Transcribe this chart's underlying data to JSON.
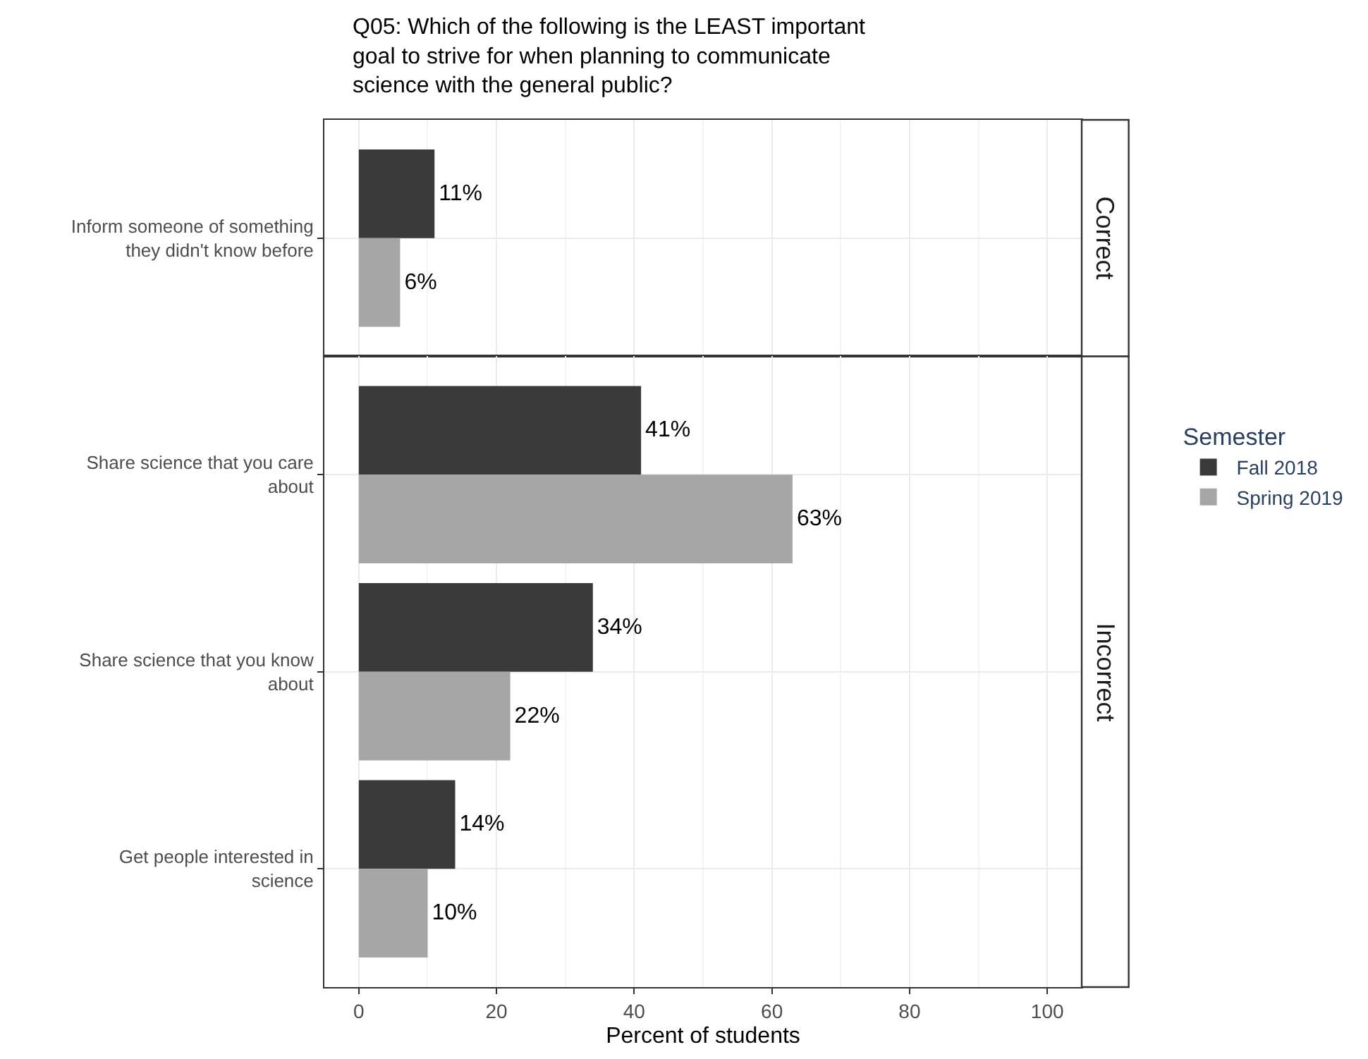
{
  "chart_data": [
    {
      "type": "bar",
      "orientation": "horizontal",
      "title": "Q05: Which of the following is the LEAST important goal to strive for when planning to communicate science with the general public?",
      "categories": [
        "Inform someone of something they didn't know before"
      ],
      "series": [
        {
          "color": "#3a3a3a",
          "values": [
            11
          ],
          "value_labels": [
            "11%"
          ]
        },
        {
          "color": "#a6a6a6",
          "values": [
            6
          ],
          "value_labels": [
            "6%"
          ]
        }
      ],
      "xlim": [
        -5,
        105
      ],
      "xticks": [
        0,
        20,
        40,
        60,
        80,
        100
      ],
      "tick_labels": "y",
      "grid": true,
      "legend": false,
      "annotations": [
        "Correct"
      ]
    },
    {
      "type": "bar",
      "orientation": "horizontal",
      "xlabel": "Percent of students",
      "legend_title": "Semester",
      "categories": [
        "Share science that you care about",
        "Share science that you know about",
        "Get people interested in science"
      ],
      "series": [
        {
          "name": "Fall 2018",
          "color": "#3a3a3a",
          "values": [
            41,
            34,
            14
          ],
          "value_labels": [
            "41%",
            "34%",
            "14%"
          ]
        },
        {
          "name": "Spring 2019",
          "color": "#a6a6a6",
          "values": [
            63,
            22,
            10
          ],
          "value_labels": [
            "63%",
            "22%",
            "10%"
          ]
        }
      ],
      "xlim": [
        -5,
        105
      ],
      "xticks": [
        0,
        20,
        40,
        60,
        80,
        100
      ],
      "grid": true,
      "legend": "right",
      "annotations": [
        "Incorrect"
      ]
    }
  ]
}
